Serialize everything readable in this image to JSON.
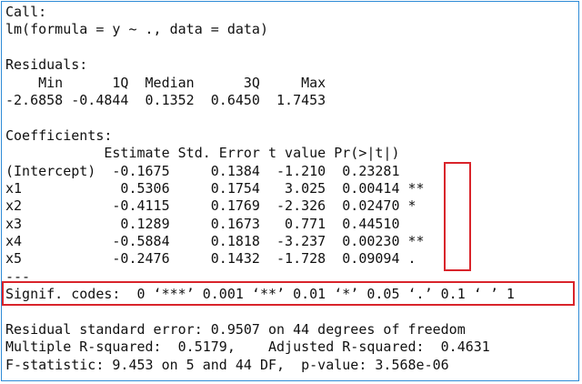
{
  "colors": {
    "frame": "#2e8bd6",
    "highlight": "#d9242b",
    "text": "#111111"
  },
  "console": {
    "call_header": "Call:",
    "call_formula": "lm(formula = y ~ ., data = data)",
    "residuals_header": "Residuals:",
    "residuals_columns": "    Min      1Q  Median      3Q     Max ",
    "residuals_values": "-2.6858 -0.4844  0.1352  0.6450  1.7453 ",
    "coefficients_header": "Coefficients:",
    "coefficients_columns": "            Estimate Std. Error t value Pr(>|t|)   ",
    "coefficient_rows": [
      "(Intercept)  -0.1675     0.1384  -1.210  0.23281   ",
      "x1            0.5306     0.1754   3.025  0.00414 **",
      "x2           -0.4115     0.1769  -2.326  0.02470 * ",
      "x3            0.1289     0.1673   0.771  0.44510   ",
      "x4           -0.5884     0.1818  -3.237  0.00230 **",
      "x5           -0.2476     0.1432  -1.728  0.09094 . "
    ],
    "separator": "---",
    "signif_codes": "Signif. codes:  0 ‘***’ 0.001 ‘**’ 0.01 ‘*’ 0.05 ‘.’ 0.1 ‘ ’ 1",
    "residual_std_error": "Residual standard error: 0.9507 on 44 degrees of freedom",
    "r_squared": "Multiple R-squared:  0.5179,    Adjusted R-squared:  0.4631 ",
    "f_statistic": "F-statistic: 9.453 on 5 and 44 DF,  p-value: 3.568e-06"
  }
}
